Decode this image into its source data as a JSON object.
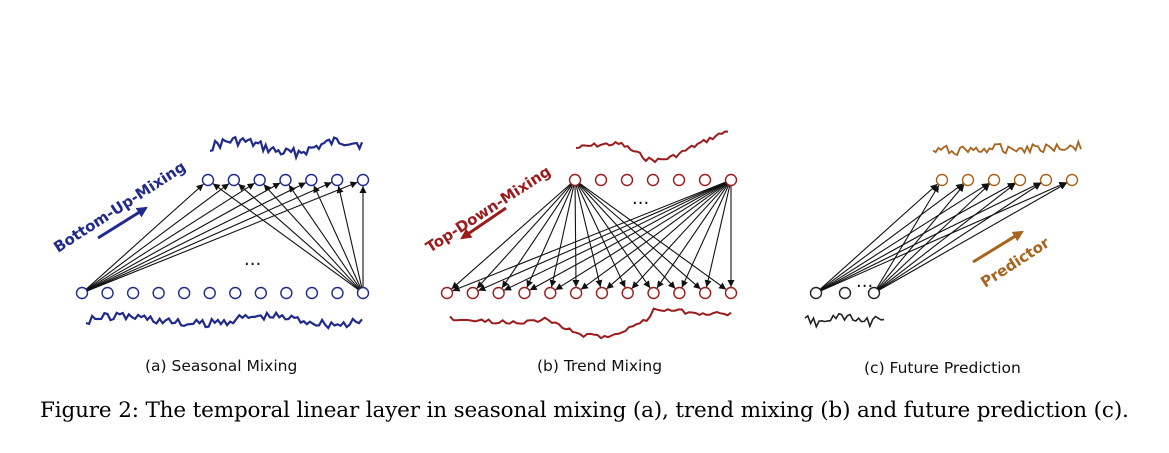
{
  "colors": {
    "seasonal": "#1f2a8c",
    "trend": "#9b1c1c",
    "future": "#a8641e",
    "arrow": "#111111",
    "input_node": "#222222"
  },
  "panels": [
    {
      "id": "seasonal",
      "subcaption": "(a) Seasonal Mixing",
      "direction_label": "Bottom-Up-Mixing",
      "ellipsis": "..."
    },
    {
      "id": "trend",
      "subcaption": "(b) Trend Mixing",
      "direction_label": "Top-Down-Mixing",
      "ellipsis": "..."
    },
    {
      "id": "future",
      "subcaption": "(c) Future Prediction",
      "direction_label": "Predictor",
      "ellipsis": "..."
    }
  ],
  "caption": "Figure 2: The temporal linear layer in seasonal mixing (a), trend mixing (b) and future prediction (c)."
}
